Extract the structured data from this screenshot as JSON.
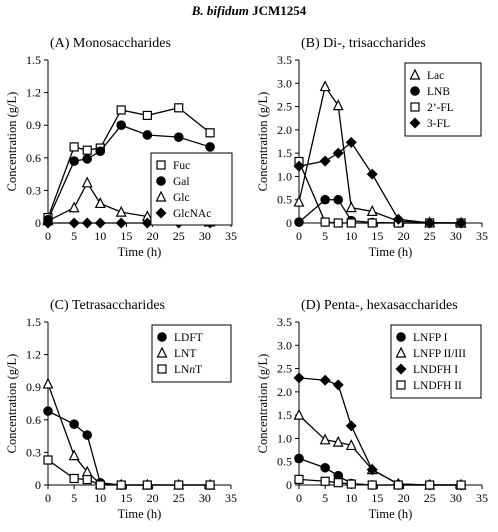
{
  "figure": {
    "title_italic": "B. bifidum",
    "title_rest": " JCM1254"
  },
  "chart_data": [
    {
      "type": "line",
      "title": "(A) Monosaccharides",
      "xlabel": "Time (h)",
      "ylabel": "Concentration (g/L)",
      "xlim": [
        0,
        35
      ],
      "ylim": [
        0,
        1.5
      ],
      "xticks": [
        "0",
        "5",
        "10",
        "15",
        "20",
        "25",
        "30",
        "35"
      ],
      "yticks": [
        "0",
        "0.3",
        "0.6",
        "0.9",
        "1.2",
        "1.5"
      ],
      "grid": false,
      "legend_position": "lower-right",
      "series": [
        {
          "name": "Fuc",
          "marker": "square-open",
          "x": [
            0,
            5,
            7.5,
            10,
            14,
            19,
            25,
            31
          ],
          "y": [
            0.05,
            0.7,
            0.67,
            0.69,
            1.04,
            0.99,
            1.06,
            0.83
          ]
        },
        {
          "name": "Gal",
          "marker": "circle-filled",
          "x": [
            0,
            5,
            7.5,
            10,
            14,
            19,
            25,
            31
          ],
          "y": [
            0.03,
            0.57,
            0.59,
            0.66,
            0.9,
            0.81,
            0.79,
            0.7
          ]
        },
        {
          "name": "Glc",
          "marker": "triangle-open",
          "x": [
            0,
            5,
            7.5,
            10,
            14,
            19,
            25,
            31
          ],
          "y": [
            0.02,
            0.14,
            0.37,
            0.18,
            0.1,
            0.06,
            0.03,
            0.01
          ]
        },
        {
          "name": "GlcNAc",
          "marker": "diamond-filled",
          "x": [
            0,
            5,
            7.5,
            10,
            14,
            19,
            25,
            31
          ],
          "y": [
            0.0,
            0.0,
            0.0,
            0.0,
            0.0,
            0.0,
            0.0,
            0.0
          ]
        }
      ]
    },
    {
      "type": "line",
      "title": "(B) Di-, trisaccharides",
      "xlabel": "Time (h)",
      "ylabel": "Concentration (g/L)",
      "xlim": [
        0,
        35
      ],
      "ylim": [
        0,
        3.5
      ],
      "xticks": [
        "0",
        "5",
        "10",
        "15",
        "20",
        "25",
        "30",
        "35"
      ],
      "yticks": [
        "0",
        "0.5",
        "1.0",
        "1.5",
        "2.0",
        "2.5",
        "3.0",
        "3.5"
      ],
      "grid": false,
      "legend_position": "top-right",
      "series": [
        {
          "name": "Lac",
          "marker": "triangle-open",
          "x": [
            0,
            5,
            7.5,
            10,
            14,
            19,
            25,
            31
          ],
          "y": [
            0.45,
            2.93,
            2.52,
            0.33,
            0.25,
            0.04,
            0.01,
            0.0
          ]
        },
        {
          "name": "LNB",
          "marker": "circle-filled",
          "x": [
            0,
            5,
            7.5,
            10,
            14,
            19,
            25,
            31
          ],
          "y": [
            0.02,
            0.5,
            0.5,
            0.05,
            0.01,
            0.0,
            0.0,
            0.0
          ]
        },
        {
          "name": "2’-FL",
          "marker": "square-open",
          "x": [
            0,
            5,
            7.5,
            10,
            14,
            19,
            25,
            31
          ],
          "y": [
            1.32,
            0.02,
            0.0,
            0.0,
            0.0,
            0.0,
            0.0,
            0.0
          ]
        },
        {
          "name": "3-FL",
          "marker": "diamond-filled",
          "x": [
            0,
            5,
            7.5,
            10,
            14,
            19,
            25,
            31
          ],
          "y": [
            1.22,
            1.33,
            1.5,
            1.73,
            1.05,
            0.08,
            0.0,
            0.0
          ]
        }
      ]
    },
    {
      "type": "line",
      "title": "(C) Tetrasaccharides",
      "xlabel": "Time (h)",
      "ylabel": "Concentration (g/L)",
      "xlim": [
        0,
        35
      ],
      "ylim": [
        0,
        1.5
      ],
      "xticks": [
        "0",
        "5",
        "10",
        "15",
        "20",
        "25",
        "30",
        "35"
      ],
      "yticks": [
        "0",
        "0.3",
        "0.6",
        "0.9",
        "1.2",
        "1.5"
      ],
      "grid": false,
      "legend_position": "top-right",
      "series": [
        {
          "name": "LDFT",
          "marker": "circle-filled",
          "x": [
            0,
            5,
            7.5,
            10,
            14,
            19,
            25,
            31
          ],
          "y": [
            0.68,
            0.56,
            0.46,
            0.02,
            0.0,
            0.0,
            0.0,
            0.0
          ]
        },
        {
          "name": "LNT",
          "marker": "triangle-open",
          "x": [
            0,
            5,
            7.5,
            10,
            14,
            19,
            25,
            31
          ],
          "y": [
            0.93,
            0.27,
            0.12,
            0.01,
            0.0,
            0.0,
            0.0,
            0.0
          ]
        },
        {
          "name": "LNnT",
          "name_parts": [
            "LN",
            "n",
            "T"
          ],
          "marker": "square-open",
          "x": [
            0,
            5,
            7.5,
            10,
            14,
            19,
            25,
            31
          ],
          "y": [
            0.23,
            0.06,
            0.05,
            0.0,
            0.0,
            0.0,
            0.0,
            0.0
          ]
        }
      ]
    },
    {
      "type": "line",
      "title": "(D) Penta-, hexasaccharides",
      "xlabel": "Time (h)",
      "ylabel": "Concentration (g/L)",
      "xlim": [
        0,
        35
      ],
      "ylim": [
        0,
        3.5
      ],
      "xticks": [
        "0",
        "5",
        "10",
        "15",
        "20",
        "25",
        "30",
        "35"
      ],
      "yticks": [
        "0",
        "0.5",
        "1.0",
        "1.5",
        "2.0",
        "2.5",
        "3.0",
        "3.5"
      ],
      "grid": false,
      "legend_position": "top-right",
      "series": [
        {
          "name": "LNFP I",
          "marker": "circle-filled",
          "x": [
            0,
            5,
            7.5,
            10,
            14,
            19,
            25,
            31
          ],
          "y": [
            0.57,
            0.37,
            0.2,
            0.03,
            0.0,
            0.0,
            0.0,
            0.0
          ]
        },
        {
          "name": "LNFP II/III",
          "marker": "triangle-open",
          "x": [
            0,
            5,
            7.5,
            10,
            14,
            19,
            25,
            31
          ],
          "y": [
            1.5,
            0.97,
            0.92,
            0.85,
            0.33,
            0.02,
            0.0,
            0.0
          ]
        },
        {
          "name": "LNDFH I",
          "marker": "diamond-filled",
          "x": [
            0,
            5,
            7.5,
            10,
            14,
            19,
            25,
            31
          ],
          "y": [
            2.3,
            2.25,
            2.15,
            1.27,
            0.33,
            0.02,
            0.0,
            0.0
          ]
        },
        {
          "name": "LNDFH II",
          "marker": "square-open",
          "x": [
            0,
            5,
            7.5,
            10,
            14,
            19,
            25,
            31
          ],
          "y": [
            0.12,
            0.08,
            0.05,
            0.02,
            0.0,
            0.0,
            0.0,
            0.0
          ]
        }
      ]
    }
  ]
}
